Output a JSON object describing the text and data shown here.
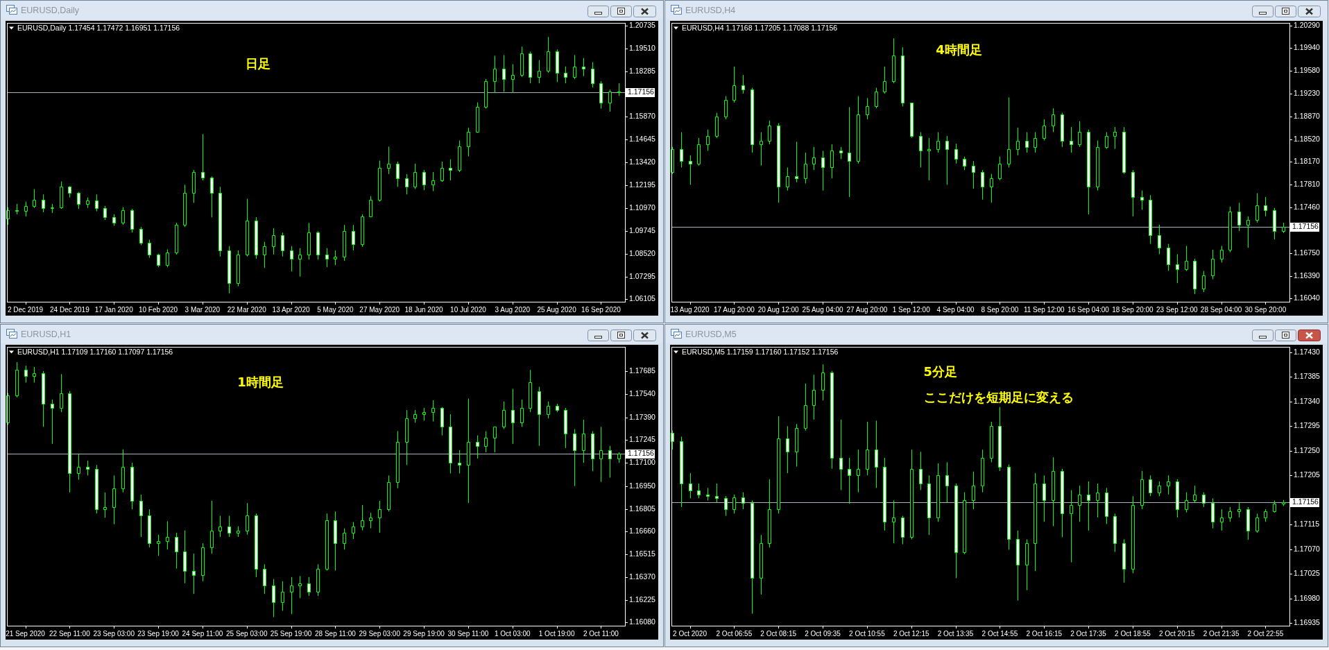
{
  "chart_data": [
    {
      "type": "candlestick",
      "title": "EURUSD,Daily",
      "subtitle": "EURUSD,Daily 1.17454 1.17472 1.16951 1.17156",
      "annotations": [
        "日足"
      ],
      "color": "#00ff00",
      "categories": [
        null,
        null,
        "2 Dec 2019",
        null,
        null,
        null,
        null,
        "24 Dec 2019",
        null,
        null,
        null,
        null,
        "17 Jan 2020",
        null,
        null,
        null,
        null,
        "10 Feb 2020",
        null,
        null,
        null,
        null,
        "3 Mar 2020",
        null,
        null,
        null,
        null,
        "22 Mar 2020",
        null,
        null,
        null,
        null,
        "13 Apr 2020",
        null,
        null,
        null,
        null,
        "5 May 2020",
        null,
        null,
        null,
        null,
        "27 May 2020",
        null,
        null,
        null,
        null,
        "18 Jun 2020",
        null,
        null,
        null,
        null,
        "10 Jul 2020",
        null,
        null,
        null,
        null,
        "3 Aug 2020",
        null,
        null,
        null,
        null,
        "25 Aug 2020",
        null,
        null,
        null,
        null,
        "16 Sep 2020",
        null,
        null
      ],
      "ohlc": [
        [
          1.104,
          1.1101,
          1.1006,
          1.1085
        ],
        [
          1.1085,
          1.1119,
          1.1063,
          1.1081
        ],
        [
          1.1081,
          1.1131,
          1.1051,
          1.1108
        ],
        [
          1.1108,
          1.1198,
          1.1097,
          1.1142
        ],
        [
          1.1142,
          1.1169,
          1.1074,
          1.1097
        ],
        [
          1.1097,
          1.1119,
          1.107,
          1.1101
        ],
        [
          1.1101,
          1.1239,
          1.1092,
          1.121
        ],
        [
          1.121,
          1.1214,
          1.1153,
          1.1176
        ],
        [
          1.1176,
          1.1183,
          1.1092,
          1.1119
        ],
        [
          1.1119,
          1.1153,
          1.1097,
          1.1137
        ],
        [
          1.1137,
          1.1169,
          1.1079,
          1.1097
        ],
        [
          1.1097,
          1.1108,
          1.1033,
          1.1047
        ],
        [
          1.1047,
          1.1063,
          1.1002,
          1.1017
        ],
        [
          1.1017,
          1.1101,
          1.1006,
          1.1085
        ],
        [
          1.1085,
          1.1092,
          1.0965,
          1.0984
        ],
        [
          1.0984,
          1.0995,
          1.0898,
          1.0911
        ],
        [
          1.0911,
          1.0927,
          1.083,
          1.0848
        ],
        [
          1.0848,
          1.0852,
          1.078,
          1.0791
        ],
        [
          1.0791,
          1.0875,
          1.078,
          1.0859
        ],
        [
          1.0859,
          1.1017,
          1.0848,
          1.1006
        ],
        [
          1.1006,
          1.1221,
          1.0995,
          1.1176
        ],
        [
          1.1176,
          1.13,
          1.1124,
          1.1289
        ],
        [
          1.1289,
          1.1492,
          1.1244,
          1.126
        ],
        [
          1.126,
          1.1266,
          1.1047,
          1.1176
        ],
        [
          1.1176,
          1.121,
          1.0837,
          1.087
        ],
        [
          1.087,
          1.0893,
          1.064,
          1.0694
        ],
        [
          1.0694,
          1.087,
          1.0678,
          1.0848
        ],
        [
          1.0848,
          1.1146,
          1.0837,
          1.1029
        ],
        [
          1.1029,
          1.1047,
          1.0825,
          1.0848
        ],
        [
          1.0848,
          1.0916,
          1.0776,
          1.0893
        ],
        [
          1.0893,
          1.0988,
          1.0848,
          1.095
        ],
        [
          1.095,
          1.0965,
          1.0837,
          1.087
        ],
        [
          1.087,
          1.0893,
          1.0757,
          1.0825
        ],
        [
          1.0825,
          1.0882,
          1.073,
          1.0848
        ],
        [
          1.0848,
          1.1017,
          1.0821,
          1.0965
        ],
        [
          1.0965,
          1.0972,
          1.0821,
          1.0848
        ],
        [
          1.0848,
          1.0882,
          1.078,
          1.0825
        ],
        [
          1.0825,
          1.087,
          1.0791,
          1.0837
        ],
        [
          1.0837,
          1.1006,
          1.0814,
          1.0972
        ],
        [
          1.0972,
          1.1006,
          1.087,
          1.0904
        ],
        [
          1.0904,
          1.1063,
          1.0889,
          1.1051
        ],
        [
          1.1051,
          1.116,
          1.1047,
          1.1142
        ],
        [
          1.1142,
          1.135,
          1.1131,
          1.1311
        ],
        [
          1.1311,
          1.1425,
          1.1278,
          1.1334
        ],
        [
          1.1334,
          1.1345,
          1.121,
          1.1255
        ],
        [
          1.1255,
          1.1278,
          1.1169,
          1.121
        ],
        [
          1.121,
          1.1334,
          1.1198,
          1.1289
        ],
        [
          1.1289,
          1.13,
          1.1192,
          1.1221
        ],
        [
          1.1221,
          1.1289,
          1.1187,
          1.1244
        ],
        [
          1.1244,
          1.1345,
          1.1237,
          1.1311
        ],
        [
          1.1311,
          1.1357,
          1.1244,
          1.13
        ],
        [
          1.13,
          1.1458,
          1.1289,
          1.1425
        ],
        [
          1.1425,
          1.1526,
          1.1373,
          1.1504
        ],
        [
          1.1504,
          1.1662,
          1.1499,
          1.1639
        ],
        [
          1.1639,
          1.1786,
          1.1628,
          1.1775
        ],
        [
          1.1775,
          1.1911,
          1.1712,
          1.1843
        ],
        [
          1.1843,
          1.1915,
          1.1718,
          1.1786
        ],
        [
          1.1786,
          1.1866,
          1.1712,
          1.1809
        ],
        [
          1.1809,
          1.196,
          1.1798,
          1.1922
        ],
        [
          1.1922,
          1.1933,
          1.1764,
          1.1798
        ],
        [
          1.1798,
          1.1888,
          1.1764,
          1.1832
        ],
        [
          1.1832,
          1.2012,
          1.182,
          1.1933
        ],
        [
          1.1933,
          1.1945,
          1.1771,
          1.182
        ],
        [
          1.182,
          1.1854,
          1.1764,
          1.1798
        ],
        [
          1.1798,
          1.1915,
          1.1786,
          1.1854
        ],
        [
          1.1854,
          1.1899,
          1.1802,
          1.1843
        ],
        [
          1.1843,
          1.1877,
          1.1741,
          1.1764
        ],
        [
          1.1764,
          1.1775,
          1.1628,
          1.1662
        ],
        [
          1.1662,
          1.173,
          1.1612,
          1.1718
        ],
        [
          1.1718,
          1.1764,
          1.1696,
          1.1716
        ]
      ],
      "ylim": [
        1.0595,
        1.2087
      ],
      "yticks": [
        1.20735,
        {
          "value": 1.1951,
          "label": "1.19510"
        },
        1.18285,
        {
          "value": 1.1587,
          "label": "1.15870"
        },
        1.14645,
        {
          "value": 1.1342,
          "label": "1.13420"
        },
        1.12195,
        {
          "value": 1.1097,
          "label": "1.10970"
        },
        1.09745,
        {
          "value": 1.0852,
          "label": "1.08520"
        },
        1.07295,
        1.06105
      ],
      "ref_lines": [
        {
          "axis": "y",
          "value": 1.17156,
          "label": "1.17156",
          "color": "#a9b4bf"
        }
      ]
    },
    {
      "type": "candlestick",
      "title": "EURUSD,H4",
      "subtitle": "EURUSD,H4 1.17168 1.17205 1.17088 1.17156",
      "annotations": [
        "4時間足"
      ],
      "color": "#00ff00",
      "categories": [
        null,
        null,
        "13 Aug 2020",
        null,
        null,
        null,
        null,
        "17 Aug 20:00",
        null,
        null,
        null,
        null,
        "20 Aug 12:00",
        null,
        null,
        null,
        null,
        "25 Aug 04:00",
        null,
        null,
        null,
        null,
        "27 Aug 20:00",
        null,
        null,
        null,
        null,
        "1 Sep 12:00",
        null,
        null,
        null,
        null,
        "4 Sep 04:00",
        null,
        null,
        null,
        null,
        "8 Sep 20:00",
        null,
        null,
        null,
        null,
        "11 Sep 12:00",
        null,
        null,
        null,
        null,
        "16 Sep 04:00",
        null,
        null,
        null,
        null,
        "18 Sep 20:00",
        null,
        null,
        null,
        null,
        "23 Sep 12:00",
        null,
        null,
        null,
        null,
        "28 Sep 04:00",
        null,
        null,
        null,
        null,
        "30 Sep 20:00",
        null,
        null
      ],
      "ohlc": [
        [
          1.1801,
          1.184,
          1.1798,
          1.1837
        ],
        [
          1.1837,
          1.1863,
          1.1808,
          1.1818
        ],
        [
          1.1818,
          1.1827,
          1.1781,
          1.1814
        ],
        [
          1.1814,
          1.1854,
          1.1811,
          1.1844
        ],
        [
          1.1844,
          1.1867,
          1.1834,
          1.1857
        ],
        [
          1.1857,
          1.1893,
          1.1854,
          1.1887
        ],
        [
          1.1887,
          1.1919,
          1.1883,
          1.1913
        ],
        [
          1.1913,
          1.1965,
          1.1909,
          1.1936
        ],
        [
          1.1936,
          1.1952,
          1.1923,
          1.1929
        ],
        [
          1.1929,
          1.1932,
          1.1831,
          1.1844
        ],
        [
          1.1844,
          1.1863,
          1.1811,
          1.185
        ],
        [
          1.185,
          1.1881,
          1.1844,
          1.1873
        ],
        [
          1.1873,
          1.1877,
          1.1753,
          1.1778
        ],
        [
          1.1778,
          1.1808,
          1.1772,
          1.1794
        ],
        [
          1.1794,
          1.1848,
          1.1785,
          1.1791
        ],
        [
          1.1791,
          1.1831,
          1.1783,
          1.1814
        ],
        [
          1.1814,
          1.184,
          1.1804,
          1.1824
        ],
        [
          1.1824,
          1.1834,
          1.1772,
          1.1808
        ],
        [
          1.1808,
          1.1844,
          1.1791,
          1.1834
        ],
        [
          1.1834,
          1.184,
          1.1821,
          1.1831
        ],
        [
          1.1831,
          1.1902,
          1.1762,
          1.1818
        ],
        [
          1.1818,
          1.1919,
          1.1814,
          1.189
        ],
        [
          1.189,
          1.1916,
          1.1883,
          1.1903
        ],
        [
          1.1903,
          1.1932,
          1.19,
          1.1926
        ],
        [
          1.1926,
          1.1965,
          1.1923,
          1.1942
        ],
        [
          1.1942,
          1.2009,
          1.1939,
          1.1982
        ],
        [
          1.1982,
          1.1995,
          1.1903,
          1.1909
        ],
        [
          1.1909,
          1.1909,
          1.1854,
          1.1857
        ],
        [
          1.1857,
          1.1863,
          1.1808,
          1.1834
        ],
        [
          1.1834,
          1.1854,
          1.1788,
          1.1837
        ],
        [
          1.1837,
          1.1863,
          1.1831,
          1.185
        ],
        [
          1.185,
          1.1857,
          1.1781,
          1.1837
        ],
        [
          1.1837,
          1.1845,
          1.1814,
          1.1821
        ],
        [
          1.1821,
          1.1825,
          1.1804,
          1.1811
        ],
        [
          1.1811,
          1.1818,
          1.1775,
          1.1801
        ],
        [
          1.1801,
          1.1804,
          1.1758,
          1.1778
        ],
        [
          1.1778,
          1.1798,
          1.1753,
          1.1791
        ],
        [
          1.1791,
          1.1825,
          1.1788,
          1.1814
        ],
        [
          1.1814,
          1.1917,
          1.1808,
          1.1837
        ],
        [
          1.1837,
          1.187,
          1.1827,
          1.185
        ],
        [
          1.185,
          1.1863,
          1.1831,
          1.184
        ],
        [
          1.184,
          1.1863,
          1.1831,
          1.1854
        ],
        [
          1.1854,
          1.1883,
          1.185,
          1.1873
        ],
        [
          1.1873,
          1.19,
          1.1863,
          1.189
        ],
        [
          1.189,
          1.1893,
          1.184,
          1.185
        ],
        [
          1.185,
          1.1871,
          1.1831,
          1.1844
        ],
        [
          1.1844,
          1.188,
          1.184,
          1.1863
        ],
        [
          1.1863,
          1.1867,
          1.1735,
          1.1778
        ],
        [
          1.1778,
          1.185,
          1.1772,
          1.184
        ],
        [
          1.184,
          1.1863,
          1.1837,
          1.1857
        ],
        [
          1.1857,
          1.1871,
          1.1837,
          1.1863
        ],
        [
          1.1863,
          1.1871,
          1.1798,
          1.1801
        ],
        [
          1.1801,
          1.1804,
          1.1732,
          1.1762
        ],
        [
          1.1762,
          1.1772,
          1.1742,
          1.1758
        ],
        [
          1.1758,
          1.1765,
          1.1689,
          1.1703
        ],
        [
          1.1703,
          1.1719,
          1.1673,
          1.1683
        ],
        [
          1.1683,
          1.1689,
          1.1647,
          1.1657
        ],
        [
          1.1657,
          1.1673,
          1.1628,
          1.165
        ],
        [
          1.165,
          1.1686,
          1.1647,
          1.1663
        ],
        [
          1.1663,
          1.1666,
          1.1611,
          1.162
        ],
        [
          1.162,
          1.1647,
          1.1614,
          1.164
        ],
        [
          1.164,
          1.168,
          1.1634,
          1.1666
        ],
        [
          1.1666,
          1.1686,
          1.166,
          1.168
        ],
        [
          1.168,
          1.1747,
          1.1676,
          1.1739
        ],
        [
          1.1739,
          1.1753,
          1.1709,
          1.1719
        ],
        [
          1.1719,
          1.1732,
          1.1683,
          1.1726
        ],
        [
          1.1726,
          1.1768,
          1.1722,
          1.1749
        ],
        [
          1.1749,
          1.1762,
          1.1732,
          1.1742
        ],
        [
          1.1742,
          1.1745,
          1.1696,
          1.1709
        ],
        [
          1.1709,
          1.1722,
          1.1706,
          1.1716
        ]
      ],
      "ylim": [
        1.1599,
        1.2033
      ],
      "yticks": [
        {
          "value": 1.2029,
          "label": "1.20290"
        },
        {
          "value": 1.1994,
          "label": "1.19940"
        },
        {
          "value": 1.1958,
          "label": "1.19580"
        },
        {
          "value": 1.1923,
          "label": "1.19230"
        },
        {
          "value": 1.1887,
          "label": "1.18870"
        },
        {
          "value": 1.1852,
          "label": "1.18520"
        },
        {
          "value": 1.1817,
          "label": "1.18170"
        },
        {
          "value": 1.1781,
          "label": "1.17810"
        },
        {
          "value": 1.1746,
          "label": "1.17460"
        },
        {
          "value": 1.1675,
          "label": "1.16750"
        },
        {
          "value": 1.1639,
          "label": "1.16390"
        },
        {
          "value": 1.1604,
          "label": "1.16040"
        }
      ],
      "ref_lines": [
        {
          "axis": "y",
          "value": 1.17156,
          "label": "1.17156",
          "color": "#a9b4bf"
        }
      ]
    },
    {
      "type": "candlestick",
      "title": "EURUSD,H1",
      "subtitle": "EURUSD,H1 1.17109 1.17160 1.17097 1.17156",
      "annotations": [
        "1時間足"
      ],
      "color": "#00ff00",
      "categories": [
        null,
        null,
        "21 Sep 2020",
        null,
        null,
        null,
        null,
        "22 Sep 11:00",
        null,
        null,
        null,
        null,
        "23 Sep 03:00",
        null,
        null,
        null,
        null,
        "23 Sep 19:00",
        null,
        null,
        null,
        null,
        "24 Sep 11:00",
        null,
        null,
        null,
        null,
        "25 Sep 03:00",
        null,
        null,
        null,
        null,
        "25 Sep 19:00",
        null,
        null,
        null,
        null,
        "28 Sep 11:00",
        null,
        null,
        null,
        null,
        "29 Sep 03:00",
        null,
        null,
        null,
        null,
        "29 Sep 19:00",
        null,
        null,
        null,
        null,
        "30 Sep 11:00",
        null,
        null,
        null,
        null,
        "1 Oct 03:00",
        null,
        null,
        null,
        null,
        "1 Oct 19:00",
        null,
        null,
        null,
        null,
        "2 Oct 11:00",
        null,
        null
      ],
      "ohlc": [
        [
          1.17356,
          1.17545,
          1.17342,
          1.17531
        ],
        [
          1.17531,
          1.17742,
          1.17518,
          1.17693
        ],
        [
          1.17693,
          1.1772,
          1.17612,
          1.17653
        ],
        [
          1.17653,
          1.17712,
          1.17612,
          1.17672
        ],
        [
          1.17672,
          1.17685,
          1.17329,
          1.17477
        ],
        [
          1.17477,
          1.17504,
          1.17221,
          1.1745
        ],
        [
          1.1745,
          1.17666,
          1.17423,
          1.17545
        ],
        [
          1.17545,
          1.17558,
          1.16911,
          1.17032
        ],
        [
          1.17032,
          1.17154,
          1.16992,
          1.17073
        ],
        [
          1.17073,
          1.17113,
          1.17019,
          1.17059
        ],
        [
          1.17059,
          1.17086,
          1.16776,
          1.16803
        ],
        [
          1.16803,
          1.16911,
          1.16749,
          1.16816
        ],
        [
          1.16816,
          1.17019,
          1.16708,
          1.16938
        ],
        [
          1.16938,
          1.17186,
          1.16911,
          1.17073
        ],
        [
          1.17073,
          1.171,
          1.16803,
          1.16857
        ],
        [
          1.16857,
          1.16897,
          1.16627,
          1.16762
        ],
        [
          1.16762,
          1.16803,
          1.1656,
          1.16587
        ],
        [
          1.16587,
          1.16641,
          1.16506,
          1.166
        ],
        [
          1.166,
          1.16727,
          1.16546,
          1.16627
        ],
        [
          1.16627,
          1.16654,
          1.16425,
          1.16533
        ],
        [
          1.16533,
          1.16668,
          1.16331,
          1.16412
        ],
        [
          1.16412,
          1.1652,
          1.16263,
          1.16385
        ],
        [
          1.16385,
          1.16587,
          1.16344,
          1.1656
        ],
        [
          1.1656,
          1.16857,
          1.1652,
          1.16668
        ],
        [
          1.16668,
          1.16762,
          1.16627,
          1.16695
        ],
        [
          1.16695,
          1.16762,
          1.16627,
          1.16654
        ],
        [
          1.16654,
          1.16695,
          1.16627,
          1.16668
        ],
        [
          1.16668,
          1.16843,
          1.16641,
          1.16762
        ],
        [
          1.16762,
          1.16776,
          1.16371,
          1.16425
        ],
        [
          1.16425,
          1.16452,
          1.16263,
          1.16317
        ],
        [
          1.16317,
          1.16358,
          1.16115,
          1.16209
        ],
        [
          1.16209,
          1.16344,
          1.16155,
          1.16277
        ],
        [
          1.16277,
          1.16371,
          1.16134,
          1.16317
        ],
        [
          1.16317,
          1.16377,
          1.16236,
          1.16331
        ],
        [
          1.16331,
          1.16371,
          1.1625,
          1.16277
        ],
        [
          1.16277,
          1.16452,
          1.1625,
          1.16425
        ],
        [
          1.16425,
          1.16776,
          1.16412,
          1.16735
        ],
        [
          1.16735,
          1.16789,
          1.16412,
          1.16587
        ],
        [
          1.16587,
          1.16681,
          1.16546,
          1.16654
        ],
        [
          1.16654,
          1.16722,
          1.16614,
          1.16695
        ],
        [
          1.16695,
          1.1683,
          1.16668,
          1.16735
        ],
        [
          1.16735,
          1.16781,
          1.16681,
          1.16749
        ],
        [
          1.16749,
          1.16857,
          1.16654,
          1.16803
        ],
        [
          1.16803,
          1.17019,
          1.16789,
          1.16978
        ],
        [
          1.16978,
          1.17302,
          1.16938,
          1.17235
        ],
        [
          1.17235,
          1.17437,
          1.17086,
          1.17383
        ],
        [
          1.17383,
          1.17437,
          1.17356,
          1.1741
        ],
        [
          1.1741,
          1.1745,
          1.17369,
          1.17423
        ],
        [
          1.17423,
          1.17499,
          1.17364,
          1.1745
        ],
        [
          1.1745,
          1.17456,
          1.17275,
          1.17329
        ],
        [
          1.17329,
          1.1741,
          1.17032,
          1.171
        ],
        [
          1.171,
          1.17181,
          1.17032,
          1.17086
        ],
        [
          1.17086,
          1.1751,
          1.16843,
          1.17235
        ],
        [
          1.17235,
          1.17275,
          1.17127,
          1.17208
        ],
        [
          1.17208,
          1.17302,
          1.17167,
          1.17262
        ],
        [
          1.17262,
          1.17329,
          1.17167,
          1.17329
        ],
        [
          1.17329,
          1.17491,
          1.17315,
          1.17437
        ],
        [
          1.17437,
          1.17572,
          1.17221,
          1.17356
        ],
        [
          1.17356,
          1.17504,
          1.17329,
          1.1745
        ],
        [
          1.1745,
          1.17693,
          1.17423,
          1.17612
        ],
        [
          1.17558,
          1.17585,
          1.17208,
          1.1741
        ],
        [
          1.1741,
          1.17491,
          1.17383,
          1.17464
        ],
        [
          1.17464,
          1.17477,
          1.17423,
          1.17437
        ],
        [
          1.17437,
          1.1745,
          1.17194,
          1.17288
        ],
        [
          1.17288,
          1.17315,
          1.16951,
          1.17181
        ],
        [
          1.17181,
          1.17375,
          1.171,
          1.17288
        ],
        [
          1.17288,
          1.17302,
          1.17046,
          1.17127
        ],
        [
          1.17127,
          1.17329,
          1.16978,
          1.17181
        ],
        [
          1.17181,
          1.17208,
          1.17005,
          1.17127
        ],
        [
          1.17127,
          1.17167,
          1.171,
          1.17156
        ]
      ],
      "ylim": [
        1.1606,
        1.1784
      ],
      "yticks": [
        1.17685,
        {
          "value": 1.1754,
          "label": "1.17540"
        },
        {
          "value": 1.1739,
          "label": "1.17390"
        },
        1.17245,
        {
          "value": 1.171,
          "label": "1.17100"
        },
        {
          "value": 1.1695,
          "label": "1.16950"
        },
        1.16805,
        {
          "value": 1.1666,
          "label": "1.16660"
        },
        1.16515,
        {
          "value": 1.1637,
          "label": "1.16370"
        },
        1.16225,
        {
          "value": 1.1608,
          "label": "1.16080"
        }
      ],
      "ref_lines": [
        {
          "axis": "y",
          "value": 1.17156,
          "label": "1.17156",
          "color": "#a9b4bf"
        }
      ]
    },
    {
      "type": "candlestick",
      "title": "EURUSD,M5",
      "subtitle": "EURUSD,M5 1.17159 1.17160 1.17152 1.17156",
      "annotations": [
        "5分足",
        "ここだけを短期足に変える"
      ],
      "color": "#00ff00",
      "categories": [
        null,
        null,
        "2 Oct 2020",
        null,
        null,
        null,
        null,
        "2 Oct 06:55",
        null,
        null,
        null,
        null,
        "2 Oct 08:15",
        null,
        null,
        null,
        null,
        "2 Oct 09:35",
        null,
        null,
        null,
        null,
        "2 Oct 10:55",
        null,
        null,
        null,
        null,
        "2 Oct 12:15",
        null,
        null,
        null,
        null,
        "2 Oct 13:35",
        null,
        null,
        null,
        null,
        "2 Oct 14:55",
        null,
        null,
        null,
        null,
        "2 Oct 16:15",
        null,
        null,
        null,
        null,
        "2 Oct 17:35",
        null,
        null,
        null,
        null,
        "2 Oct 18:55",
        null,
        null,
        null,
        null,
        "2 Oct 20:15",
        null,
        null,
        null,
        null,
        "2 Oct 21:35",
        null,
        null,
        null,
        null,
        "2 Oct 22:55",
        null,
        null
      ],
      "ohlc": [
        [
          1.17283,
          1.17287,
          1.17252,
          1.17268
        ],
        [
          1.17268,
          1.17276,
          1.17147,
          1.1719
        ],
        [
          1.1719,
          1.17209,
          1.17163,
          1.17178
        ],
        [
          1.17178,
          1.1719,
          1.17163,
          1.1717
        ],
        [
          1.1717,
          1.17182,
          1.17159,
          1.17167
        ],
        [
          1.17167,
          1.1719,
          1.17155,
          1.17163
        ],
        [
          1.17163,
          1.17167,
          1.17131,
          1.17143
        ],
        [
          1.17143,
          1.1717,
          1.17135,
          1.17165
        ],
        [
          1.17165,
          1.17174,
          1.17143,
          1.17155
        ],
        [
          1.17155,
          1.17159,
          1.16952,
          1.17018
        ],
        [
          1.17018,
          1.17096,
          1.16987,
          1.17081
        ],
        [
          1.17081,
          1.17198,
          1.17073,
          1.17143
        ],
        [
          1.17143,
          1.17313,
          1.17135,
          1.17272
        ],
        [
          1.17272,
          1.17295,
          1.17209,
          1.17248
        ],
        [
          1.17248,
          1.17299,
          1.17221,
          1.17291
        ],
        [
          1.17291,
          1.17373,
          1.17287,
          1.17334
        ],
        [
          1.17334,
          1.17389,
          1.17307,
          1.17361
        ],
        [
          1.17361,
          1.17408,
          1.17342,
          1.17393
        ],
        [
          1.17393,
          1.17396,
          1.17217,
          1.17237
        ],
        [
          1.17237,
          1.17307,
          1.17178,
          1.17217
        ],
        [
          1.17217,
          1.17237,
          1.17153,
          1.17205
        ],
        [
          1.17205,
          1.17252,
          1.17174,
          1.17217
        ],
        [
          1.17217,
          1.17303,
          1.17205,
          1.17252
        ],
        [
          1.17252,
          1.17305,
          1.17182,
          1.17221
        ],
        [
          1.17221,
          1.17237,
          1.17104,
          1.1712
        ],
        [
          1.1712,
          1.17159,
          1.17081,
          1.17128
        ],
        [
          1.17128,
          1.17131,
          1.17079,
          1.17092
        ],
        [
          1.17092,
          1.17252,
          1.17088,
          1.17217
        ],
        [
          1.17217,
          1.17248,
          1.17178,
          1.1719
        ],
        [
          1.1719,
          1.17205,
          1.17096,
          1.17128
        ],
        [
          1.17128,
          1.17227,
          1.1712,
          1.17205
        ],
        [
          1.17205,
          1.17229,
          1.17155,
          1.17186
        ],
        [
          1.17186,
          1.1719,
          1.17017,
          1.17065
        ],
        [
          1.17065,
          1.17174,
          1.17061,
          1.17159
        ],
        [
          1.17159,
          1.17212,
          1.17143,
          1.17186
        ],
        [
          1.17186,
          1.17252,
          1.17174,
          1.17237
        ],
        [
          1.17237,
          1.17303,
          1.17229,
          1.17295
        ],
        [
          1.17295,
          1.1733,
          1.17213,
          1.17221
        ],
        [
          1.17221,
          1.17225,
          1.17069,
          1.17088
        ],
        [
          1.17088,
          1.17104,
          1.16976,
          1.17042
        ],
        [
          1.17042,
          1.17088,
          1.16995,
          1.17081
        ],
        [
          1.17081,
          1.17209,
          1.1703,
          1.1719
        ],
        [
          1.1719,
          1.17205,
          1.1712,
          1.17159
        ],
        [
          1.17159,
          1.17238,
          1.17112,
          1.17213
        ],
        [
          1.17213,
          1.17217,
          1.17092,
          1.17135
        ],
        [
          1.17135,
          1.17178,
          1.17046,
          1.17151
        ],
        [
          1.17151,
          1.17186,
          1.1712,
          1.1717
        ],
        [
          1.1717,
          1.17194,
          1.17104,
          1.17159
        ],
        [
          1.17159,
          1.1719,
          1.17128,
          1.17174
        ],
        [
          1.17174,
          1.17182,
          1.17116,
          1.17131
        ],
        [
          1.17131,
          1.17135,
          1.17065,
          1.17081
        ],
        [
          1.17081,
          1.17088,
          1.17009,
          1.17034
        ],
        [
          1.17034,
          1.17167,
          1.17026,
          1.17151
        ],
        [
          1.17151,
          1.17213,
          1.17143,
          1.17198
        ],
        [
          1.17198,
          1.17205,
          1.17167,
          1.17174
        ],
        [
          1.17174,
          1.17194,
          1.17167,
          1.17186
        ],
        [
          1.17186,
          1.17205,
          1.1717,
          1.17194
        ],
        [
          1.17194,
          1.17198,
          1.17128,
          1.17143
        ],
        [
          1.17143,
          1.17174,
          1.17137,
          1.17159
        ],
        [
          1.17159,
          1.17186,
          1.17155,
          1.1717
        ],
        [
          1.1717,
          1.17174,
          1.17147,
          1.17155
        ],
        [
          1.17155,
          1.17163,
          1.17108,
          1.1712
        ],
        [
          1.1712,
          1.17143,
          1.17104,
          1.17128
        ],
        [
          1.17128,
          1.17147,
          1.1712,
          1.17139
        ],
        [
          1.17139,
          1.17155,
          1.17128,
          1.17143
        ],
        [
          1.17143,
          1.17147,
          1.17087,
          1.17104
        ],
        [
          1.17104,
          1.17135,
          1.171,
          1.17128
        ],
        [
          1.17128,
          1.17143,
          1.1712,
          1.17139
        ],
        [
          1.17139,
          1.17159,
          1.17137,
          1.17153
        ],
        [
          1.17153,
          1.1716,
          1.17149,
          1.17156
        ]
      ],
      "ylim": [
        1.1693,
        1.1744
      ],
      "yticks": [
        {
          "value": 1.1743,
          "label": "1.17430"
        },
        1.17385,
        {
          "value": 1.1734,
          "label": "1.17340"
        },
        1.17295,
        {
          "value": 1.1725,
          "label": "1.17250"
        },
        1.17205,
        1.17115,
        {
          "value": 1.1707,
          "label": "1.17070"
        },
        1.17025,
        {
          "value": 1.1698,
          "label": "1.16980"
        },
        1.16935
      ],
      "ref_lines": [
        {
          "axis": "y",
          "value": 1.17156,
          "label": "1.17156",
          "color": "#a9b4bf"
        }
      ]
    }
  ]
}
